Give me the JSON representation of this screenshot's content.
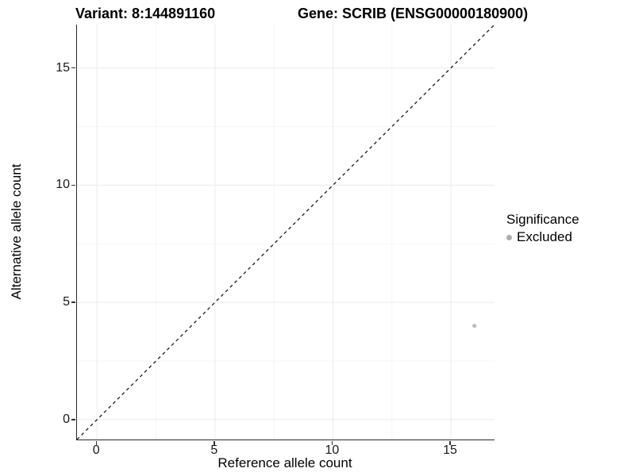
{
  "header": {
    "variant_title": "Variant: 8:144891160",
    "gene_title": "Gene: SCRIB (ENSG00000180900)"
  },
  "chart_data": {
    "type": "scatter",
    "xlabel": "Reference allele count",
    "ylabel": "Alternative allele count",
    "xlim": [
      -0.85,
      16.85
    ],
    "ylim": [
      -0.85,
      16.85
    ],
    "x_major_ticks": [
      0,
      5,
      10,
      15
    ],
    "y_major_ticks": [
      0,
      5,
      10,
      15
    ],
    "x_minor_ticks": [
      2.5,
      7.5,
      12.5
    ],
    "y_minor_ticks": [
      2.5,
      7.5,
      12.5
    ],
    "grid": "major+minor",
    "reference_line": {
      "type": "identity",
      "slope": 1,
      "intercept": 0,
      "linestyle": "dashed",
      "color": "#1a1a1a"
    },
    "series": [
      {
        "name": "Excluded",
        "color": "#bcbcbc",
        "points": [
          [
            16,
            4
          ]
        ]
      }
    ],
    "legend": {
      "title": "Significance",
      "position": "right",
      "items": [
        {
          "label": "Excluded",
          "color": "#adadad"
        }
      ]
    }
  },
  "style_colors": {
    "axis_line": "#2a2a2a",
    "tick_mark": "#333333",
    "tick_label": "#1a1a1a",
    "grid_major": "#ebebeb",
    "grid_minor": "#f5f5f5",
    "background": "#ffffff"
  }
}
